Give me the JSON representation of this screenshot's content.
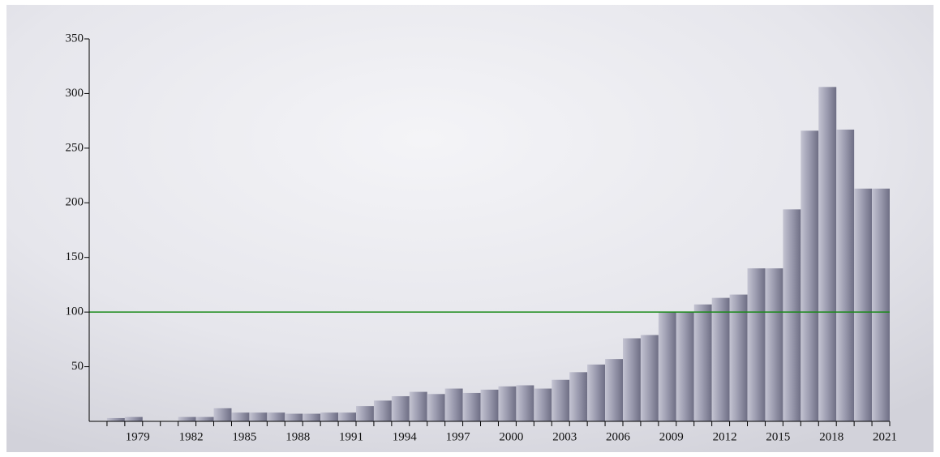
{
  "chart_data": {
    "type": "bar",
    "categories": [
      null,
      null,
      "1979",
      null,
      null,
      "1982",
      null,
      null,
      "1985",
      null,
      null,
      "1988",
      null,
      null,
      "1991",
      null,
      null,
      "1994",
      null,
      null,
      "1997",
      null,
      null,
      "2000",
      null,
      null,
      "2003",
      null,
      null,
      "2006",
      null,
      null,
      "2009",
      null,
      null,
      "2012",
      null,
      null,
      "2015",
      null,
      null,
      "2018",
      null,
      null,
      "2021"
    ],
    "values": [
      0,
      3,
      4,
      0,
      0,
      4,
      4,
      12,
      8,
      8,
      8,
      7,
      7,
      8,
      8,
      14,
      19,
      23,
      27,
      25,
      30,
      26,
      29,
      32,
      33,
      30,
      38,
      45,
      52,
      57,
      76,
      79,
      100,
      100,
      107,
      113,
      116,
      140,
      140,
      194,
      266,
      306,
      267,
      213,
      213
    ],
    "color": "#9a9aae",
    "ylim": [
      0,
      350
    ],
    "yticks": [
      50,
      100,
      150,
      200,
      250,
      300,
      350
    ],
    "reference_line": 100,
    "reference_color": "#1a8a1a"
  }
}
